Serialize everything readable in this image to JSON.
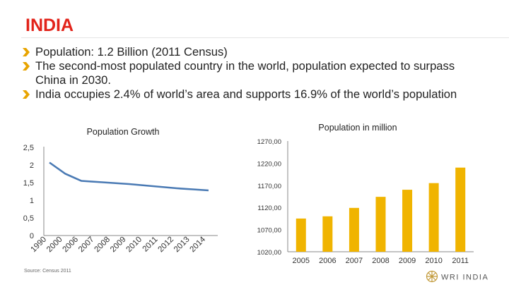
{
  "slide": {
    "title": "INDIA",
    "bullets": [
      "Population: 1.2 Billion (2011 Census)",
      "The second-most populated country in the world, population expected to surpass China in 2030.",
      "India occupies 2.4% of world’s area and supports 16.9% of the world’s population"
    ],
    "source": "Source: Census 2011",
    "logo_text": "WRI INDIA"
  },
  "colors": {
    "title": "#e2231a",
    "bullet": "#e8a400",
    "line": "#4a7ab4",
    "bar": "#f0b400"
  },
  "chart_data": [
    {
      "type": "line",
      "title": "Population Growth",
      "categories": [
        "1990",
        "2000",
        "2006",
        "2007",
        "2008",
        "2009",
        "2010",
        "2011",
        "2012",
        "2013",
        "2014"
      ],
      "values": [
        2.07,
        1.75,
        1.55,
        1.52,
        1.49,
        1.46,
        1.42,
        1.38,
        1.34,
        1.31,
        1.28
      ],
      "ylim": [
        0,
        2.5
      ],
      "yticks": [
        "0",
        "0,5",
        "1",
        "1,5",
        "2",
        "2,5"
      ],
      "grid": false
    },
    {
      "type": "bar",
      "title": "Population in million",
      "categories": [
        "2005",
        "2006",
        "2007",
        "2008",
        "2009",
        "2010",
        "2011"
      ],
      "values": [
        1095,
        1100,
        1119,
        1144,
        1160,
        1175,
        1210
      ],
      "ylim": [
        1020,
        1270
      ],
      "yticks": [
        "1020,00",
        "1070,00",
        "1120,00",
        "1170,00",
        "1220,00",
        "1270,00"
      ],
      "grid": false
    }
  ]
}
